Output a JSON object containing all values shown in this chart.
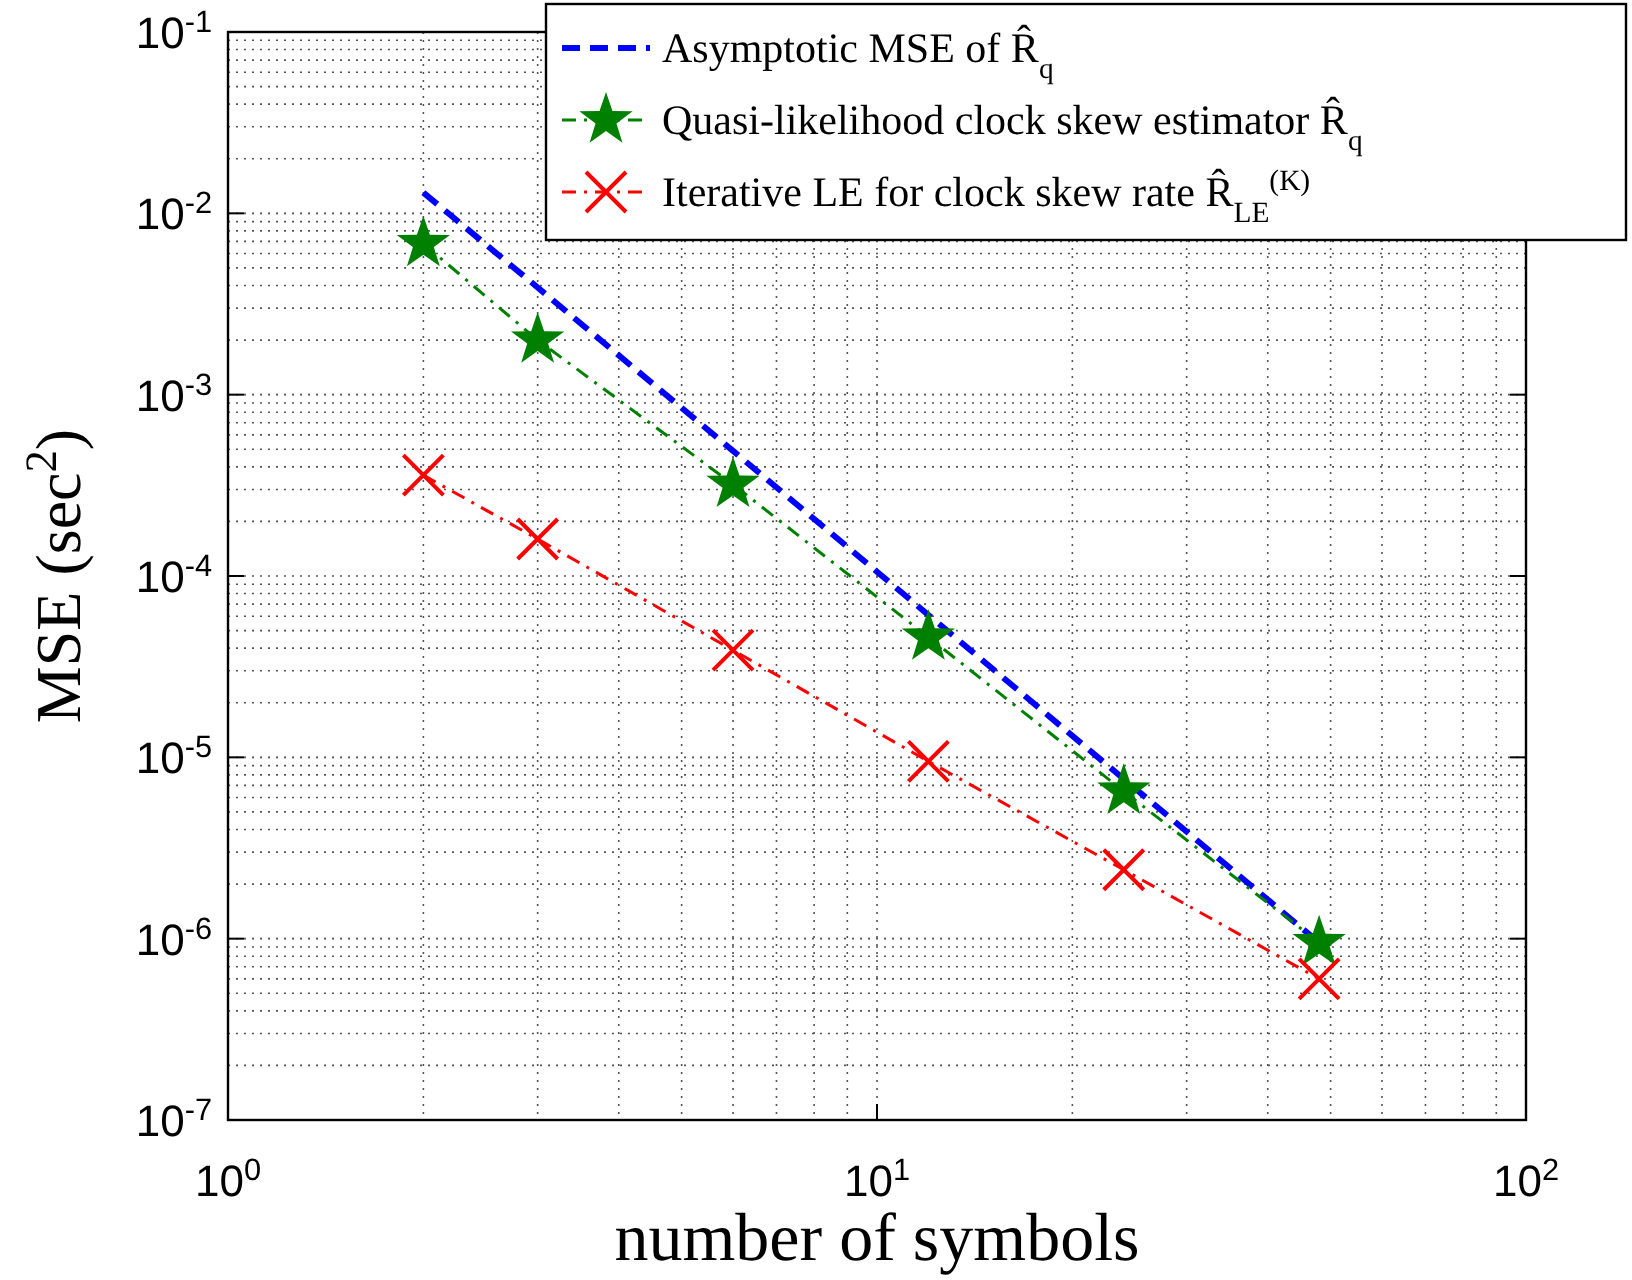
{
  "chart_data": {
    "type": "line",
    "xlabel": "number of symbols",
    "ylabel": "MSE (sec$^{2}$)",
    "log": "xy",
    "xlim": [
      1,
      100
    ],
    "ylim": [
      1e-07,
      0.1
    ],
    "xticks": [
      {
        "value": 1,
        "label": "10$^{0}$"
      },
      {
        "value": 10,
        "label": "10$^{1}$"
      },
      {
        "value": 100,
        "label": "10$^{2}$"
      }
    ],
    "yticks": [
      {
        "value": 1e-07,
        "label": "10$^{-7}$"
      },
      {
        "value": 1e-06,
        "label": "10$^{-6}$"
      },
      {
        "value": 1e-05,
        "label": "10$^{-5}$"
      },
      {
        "value": 0.0001,
        "label": "10$^{-4}$"
      },
      {
        "value": 0.001,
        "label": "10$^{-3}$"
      },
      {
        "value": 0.01,
        "label": "10$^{-2}$"
      },
      {
        "value": 0.1,
        "label": "10$^{-1}$"
      }
    ],
    "grid": true,
    "legend": "top right",
    "x": [
      2,
      3,
      6,
      12,
      24,
      48
    ],
    "series": [
      {
        "name": "Asymptotic MSE of R̂$_{q}$",
        "color": "#0000ff",
        "values": [
          0.013,
          0.0039,
          0.00049,
          6.1e-05,
          7.6e-06,
          9.5e-07
        ],
        "marker": "none",
        "line_style": "dashed"
      },
      {
        "name": "Quasi-likelihood clock skew estimator R̂$_{q}$",
        "color": "#008000",
        "values": [
          0.0068,
          0.002,
          0.00032,
          4.6e-05,
          6.5e-06,
          9.5e-07
        ],
        "marker": "star",
        "line_style": "dashdot"
      },
      {
        "name": "Iterative LE for clock skew rate R̂$_{LE}$$^{(K)}$",
        "color": "#ff0000",
        "values": [
          0.00036,
          0.00016,
          3.9e-05,
          9.5e-06,
          2.4e-06,
          6e-07
        ],
        "marker": "cross",
        "line_style": "dashdot"
      }
    ]
  }
}
